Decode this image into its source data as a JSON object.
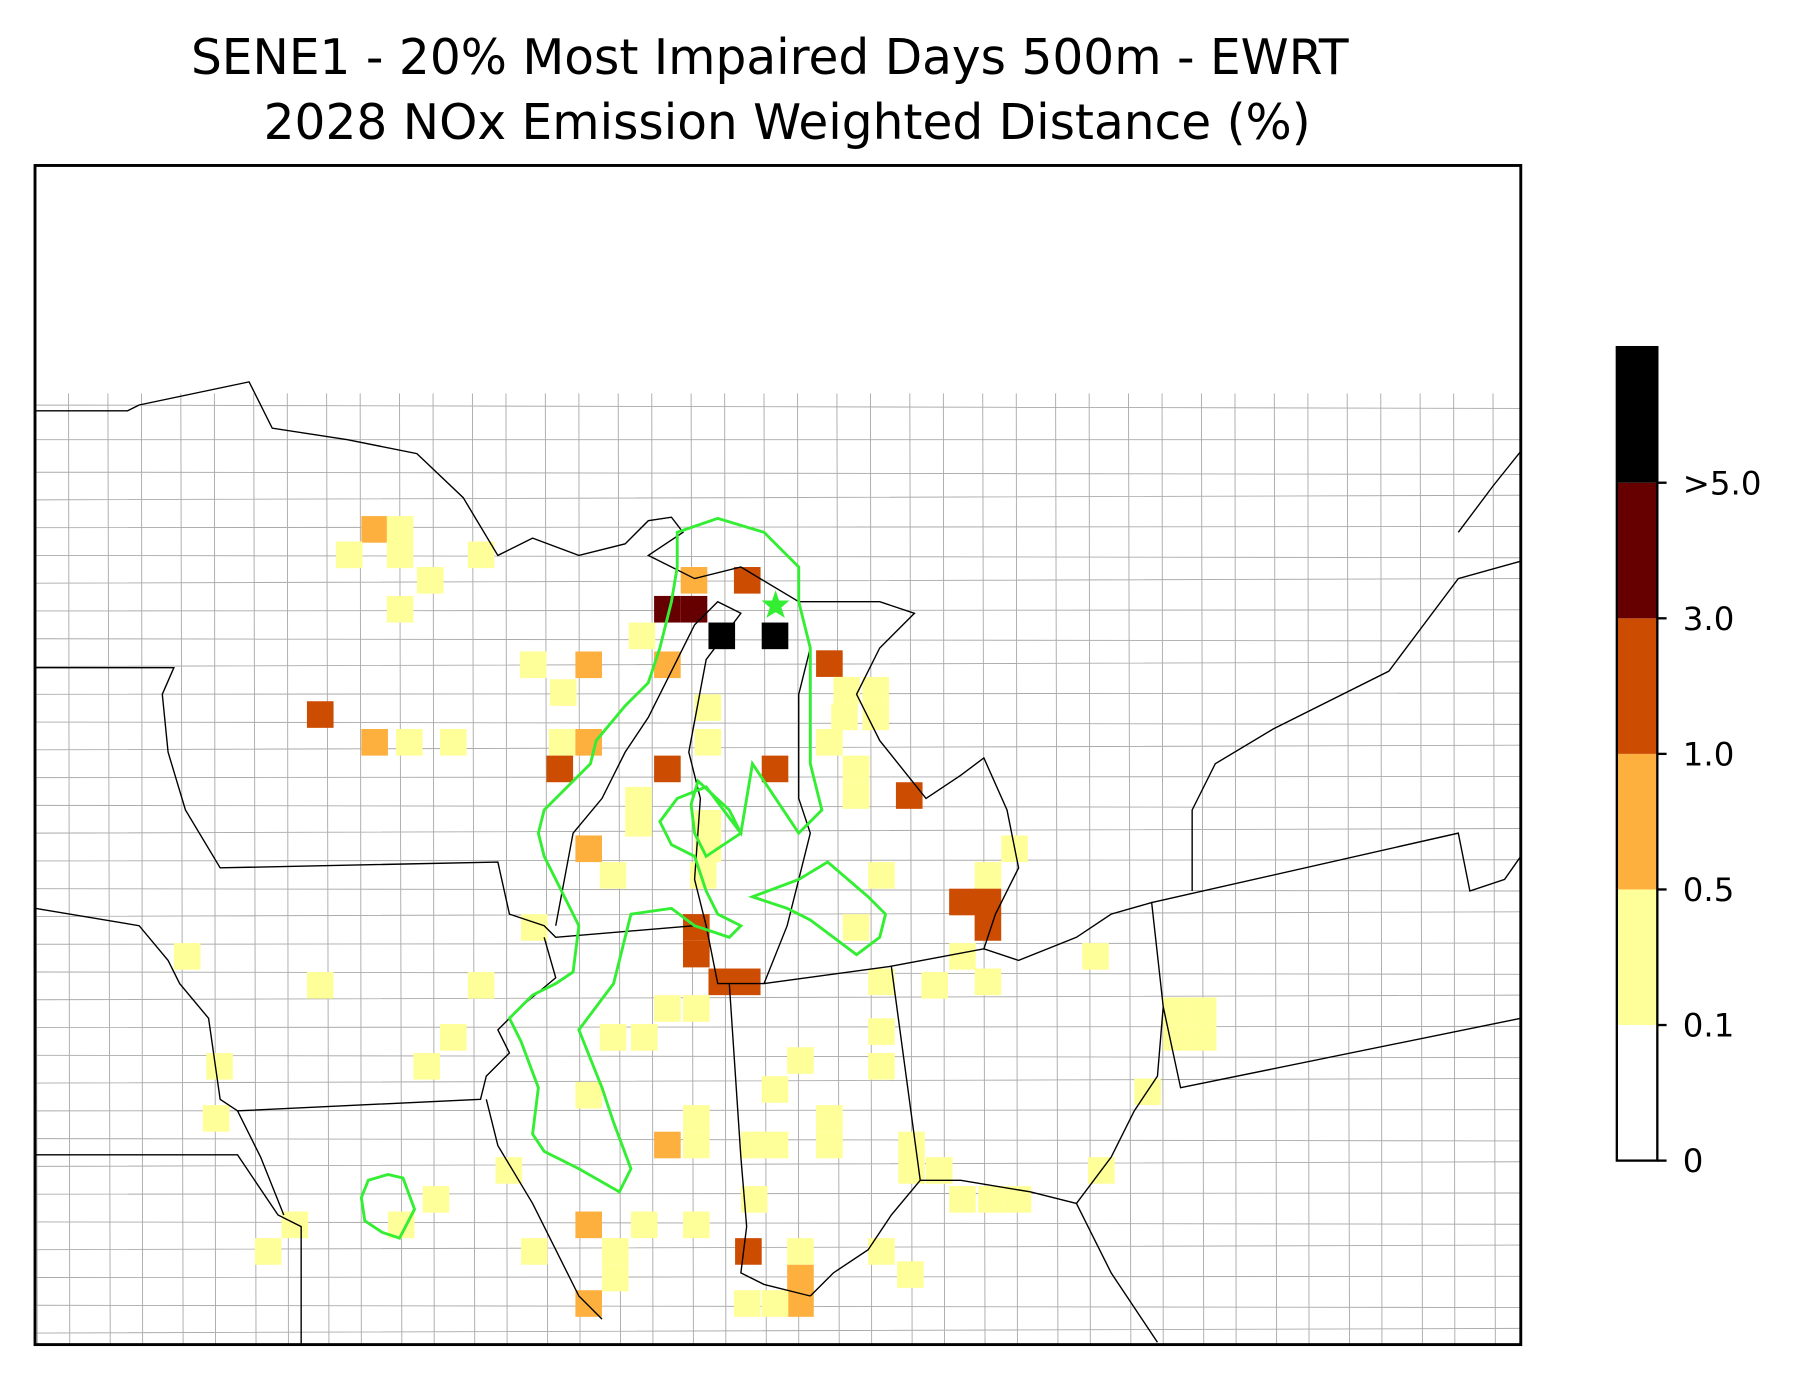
{
  "title": [
    "SENE1 - 20% Most Impaired Days 500m - EWRT",
    "2028 NOx Emission Weighted Distance (%)"
  ],
  "colorbar": {
    "ticks": [
      "0",
      "0.1",
      "0.5",
      "1.0",
      "3.0",
      ">5.0"
    ],
    "colors": [
      "#ffffff",
      "#ffff99",
      "#feb03f",
      "#cc4c02",
      "#660000",
      "#000000"
    ]
  }
}
